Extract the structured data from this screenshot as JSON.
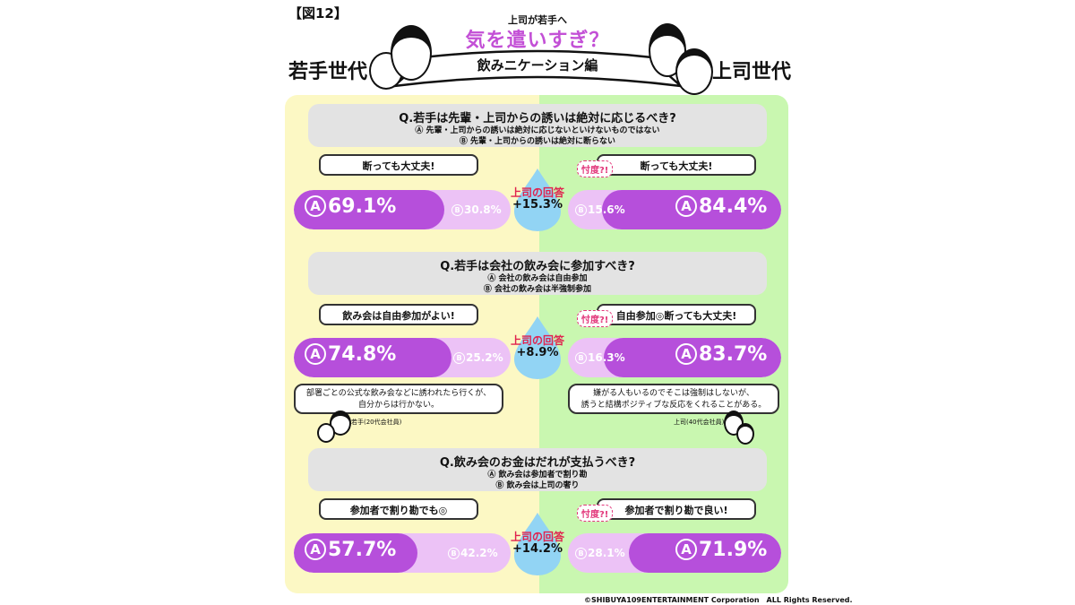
{
  "figure_label": "【図12】",
  "header": {
    "subtitle": "上司が若手へ",
    "title": "気を遣いすぎ？",
    "ribbon": "飲みニケーション編",
    "left_generation": "若手世代",
    "right_generation": "上司世代"
  },
  "drop_label": "上司の回答",
  "sontaku": "忖度?!",
  "questions": [
    {
      "title": "Q.若手は先輩・上司からの誘いは絶対に応じるべき?",
      "option_a": "Ⓐ 先輩・上司からの誘いは絶対に応じないといけないものではない",
      "option_b": "Ⓑ 先輩・上司からの誘いは絶対に断らない",
      "left_bubble": "断っても大丈夫!",
      "right_bubble": "断っても大丈夫!",
      "left_a": 69.1,
      "left_b": 30.8,
      "right_a": 84.4,
      "right_b": 15.6,
      "left_a_text": "69.1%",
      "left_b_text": "30.8%",
      "right_a_text": "84.4%",
      "right_b_text": "15.6%",
      "diff": "+15.3%"
    },
    {
      "title": "Q.若手は会社の飲み会に参加すべき?",
      "option_a": "Ⓐ 会社の飲み会は自由参加",
      "option_b": "Ⓑ 会社の飲み会は半強制参加",
      "left_bubble": "飲み会は自由参加がよい!",
      "right_bubble": "自由参加◎断っても大丈夫!",
      "left_a": 74.8,
      "left_b": 25.2,
      "right_a": 83.7,
      "right_b": 16.3,
      "left_a_text": "74.8%",
      "left_b_text": "25.2%",
      "right_a_text": "83.7%",
      "right_b_text": "16.3%",
      "diff": "+8.9%",
      "left_note_1": "部署ごとの公式な飲み会などに誘われたら行くが、",
      "left_note_2": "自分からは行かない。",
      "left_speaker": "若手(20代会社員)",
      "right_note_1": "嫌がる人もいるのでそこは強制はしないが、",
      "right_note_2": "誘うと結構ポジティブな反応をくれることがある。",
      "right_speaker": "上司(40代会社員)"
    },
    {
      "title": "Q.飲み会のお金はだれが支払うべき?",
      "option_a": "Ⓐ 飲み会は参加者で割り勘",
      "option_b": "Ⓑ 飲み会は上司の奢り",
      "left_bubble": "参加者で割り勘でも◎",
      "right_bubble": "参加者で割り勘で良い!",
      "left_a": 57.7,
      "left_b": 42.2,
      "right_a": 71.9,
      "right_b": 28.1,
      "left_a_text": "57.7%",
      "left_b_text": "42.2%",
      "right_a_text": "71.9%",
      "right_b_text": "28.1%",
      "diff": "+14.2%"
    }
  ],
  "badge_a": "A",
  "badge_b": "B",
  "copyright": "©SHIBUYA109ENTERTAINMENT Corporation　ALL Rights Reserved.",
  "colors": {
    "accent_purple": "#b64fdb",
    "light_purple": "#ecc2f6",
    "left_panel": "#fcf8c4",
    "right_panel": "#c9f7b0",
    "drop_blue": "#92d4f4",
    "answer_red": "#e0234f"
  }
}
